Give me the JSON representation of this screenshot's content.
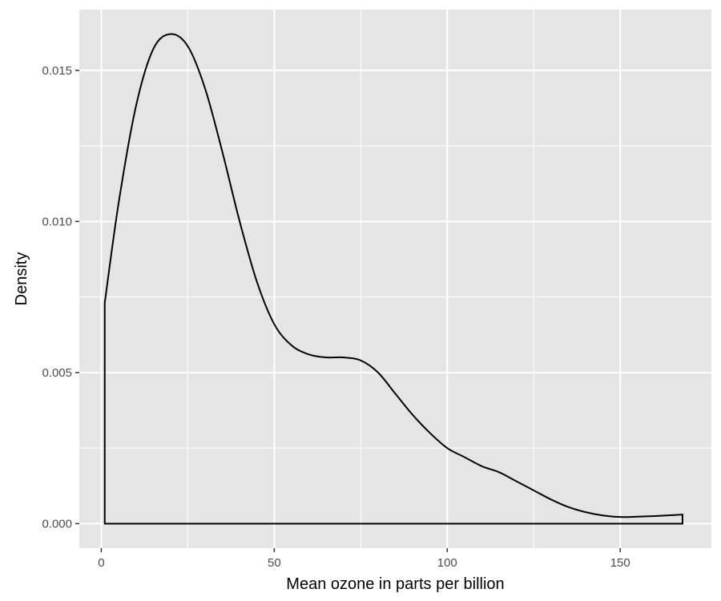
{
  "chart_data": {
    "type": "area",
    "title": "",
    "xlabel": "Mean ozone in parts per billion",
    "ylabel": "Density",
    "xlim": [
      -6.35,
      176.35
    ],
    "ylim": [
      -0.00081,
      0.01701
    ],
    "x_ticks": [
      {
        "value": 0,
        "label": "0"
      },
      {
        "value": 50,
        "label": "50"
      },
      {
        "value": 100,
        "label": "100"
      },
      {
        "value": 150,
        "label": "150"
      }
    ],
    "x_minor": [
      25,
      75,
      125
    ],
    "y_ticks": [
      {
        "value": 0.0,
        "label": "0.000"
      },
      {
        "value": 0.005,
        "label": "0.005"
      },
      {
        "value": 0.01,
        "label": "0.010"
      },
      {
        "value": 0.015,
        "label": "0.015"
      }
    ],
    "y_minor": [
      0.0025,
      0.0075,
      0.0125
    ],
    "grid": true,
    "fill": "none",
    "series": [
      {
        "x": [
          1,
          5,
          10,
          15,
          20,
          25,
          30,
          35,
          40,
          45,
          50,
          55,
          60,
          65,
          70,
          75,
          80,
          85,
          90,
          95,
          100,
          105,
          110,
          115,
          120,
          125,
          130,
          135,
          140,
          145,
          150,
          155,
          160,
          165,
          168
        ],
        "y": [
          0.0073,
          0.0106,
          0.0138,
          0.0157,
          0.0162,
          0.0158,
          0.0144,
          0.0123,
          0.01,
          0.008,
          0.0066,
          0.0059,
          0.0056,
          0.0055,
          0.0055,
          0.0054,
          0.005,
          0.0043,
          0.0036,
          0.003,
          0.0025,
          0.0022,
          0.0019,
          0.0017,
          0.0014,
          0.0011,
          0.0008,
          0.00055,
          0.00038,
          0.00027,
          0.00022,
          0.00023,
          0.00025,
          0.00028,
          0.0003
        ]
      }
    ],
    "colors": {
      "panel": "#e5e5e5",
      "grid": "#ffffff",
      "line": "#000000",
      "tick": "#333333"
    }
  }
}
